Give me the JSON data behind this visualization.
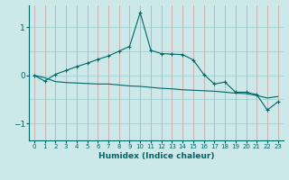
{
  "xlabel": "Humidex (Indice chaleur)",
  "x": [
    0,
    1,
    2,
    3,
    4,
    5,
    6,
    7,
    8,
    9,
    10,
    11,
    12,
    13,
    14,
    15,
    16,
    17,
    18,
    19,
    20,
    21,
    22,
    23
  ],
  "line1_y": [
    0.0,
    -0.12,
    0.02,
    0.1,
    0.18,
    0.25,
    0.33,
    0.4,
    0.5,
    0.6,
    1.3,
    0.52,
    0.45,
    0.44,
    0.43,
    0.32,
    0.02,
    -0.18,
    -0.14,
    -0.35,
    -0.35,
    -0.4,
    -0.72,
    -0.55
  ],
  "line2_y": [
    0.0,
    -0.05,
    -0.13,
    -0.15,
    -0.16,
    -0.17,
    -0.18,
    -0.18,
    -0.2,
    -0.22,
    -0.23,
    -0.25,
    -0.27,
    -0.28,
    -0.3,
    -0.31,
    -0.32,
    -0.33,
    -0.35,
    -0.37,
    -0.38,
    -0.42,
    -0.47,
    -0.44
  ],
  "line_color": "#006666",
  "bg_color": "#cce8e8",
  "grid_color_v": "#cc9999",
  "grid_color_h": "#99cccc",
  "ylim": [
    -1.35,
    1.45
  ],
  "yticks": [
    -1,
    0,
    1
  ],
  "xlim": [
    -0.5,
    23.5
  ],
  "figsize": [
    3.2,
    2.0
  ],
  "dpi": 100
}
